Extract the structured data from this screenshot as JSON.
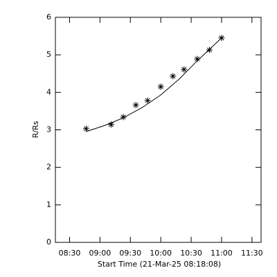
{
  "chart_data": {
    "type": "scatter",
    "x_label": "Start Time (21-Mar-25 08:18:08)",
    "y_label": "R/Rs",
    "xlim": [
      496,
      699
    ],
    "ylim": [
      0,
      6
    ],
    "xticks": [
      {
        "value": 510,
        "label": "08:30"
      },
      {
        "value": 540,
        "label": "09:00"
      },
      {
        "value": 570,
        "label": "09:30"
      },
      {
        "value": 600,
        "label": "10:00"
      },
      {
        "value": 630,
        "label": "10:30"
      },
      {
        "value": 660,
        "label": "11:00"
      },
      {
        "value": 690,
        "label": "11:30"
      }
    ],
    "yticks": [
      0,
      1,
      2,
      3,
      4,
      5,
      6
    ],
    "series": [
      {
        "color": "#000000",
        "marker": "star",
        "x": [
          526.4,
          551,
          563,
          575.4,
          587,
          600,
          612,
          623,
          636,
          648,
          660
        ],
        "values": [
          3.03,
          3.14,
          3.34,
          3.66,
          3.78,
          4.15,
          4.43,
          4.61,
          4.89,
          5.13,
          5.45
        ]
      },
      {
        "color": "#000000",
        "marker": "line",
        "x": [
          526,
          545,
          563,
          582,
          600,
          618,
          636,
          660
        ],
        "values": [
          2.95,
          3.12,
          3.32,
          3.6,
          3.93,
          4.35,
          4.84,
          5.45
        ]
      }
    ]
  }
}
